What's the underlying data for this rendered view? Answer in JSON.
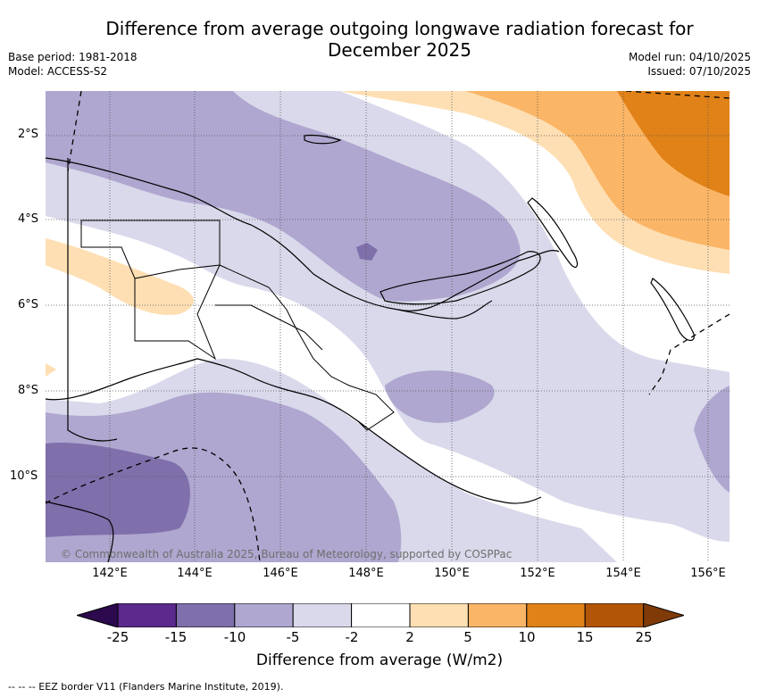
{
  "header": {
    "title_line1": "Difference from average outgoing longwave radiation forecast for",
    "title_line2": "December 2025",
    "base_period": "Base period: 1981-2018",
    "model": "Model: ACCESS-S2",
    "model_run": "Model run: 04/10/2025",
    "issued": "Issued: 07/10/2025"
  },
  "map": {
    "lat_labels": [
      "2°S",
      "4°S",
      "6°S",
      "8°S",
      "10°S"
    ],
    "lon_labels": [
      "142°E",
      "144°E",
      "146°E",
      "148°E",
      "150°E",
      "152°E",
      "154°E",
      "156°E"
    ],
    "credit": "© Commonwealth of Australia 2025, Bureau of Meteorology, supported by COSPPac"
  },
  "colorbar": {
    "ticks": [
      "-25",
      "-15",
      "-10",
      "-5",
      "-2",
      "2",
      "5",
      "10",
      "15",
      "25"
    ],
    "colors": [
      "#2d0a4e",
      "#5b2a8c",
      "#7f6fab",
      "#afa7cf",
      "#d9d9eb",
      "#ffffff",
      "#fedfb3",
      "#fbb566",
      "#e08218",
      "#b25506",
      "#7f3a08"
    ],
    "label": "Difference from average (W/m2)"
  },
  "legend": {
    "eez": "-- -- -- EEZ border V11 (Flanders Marine Institute, 2019)."
  }
}
